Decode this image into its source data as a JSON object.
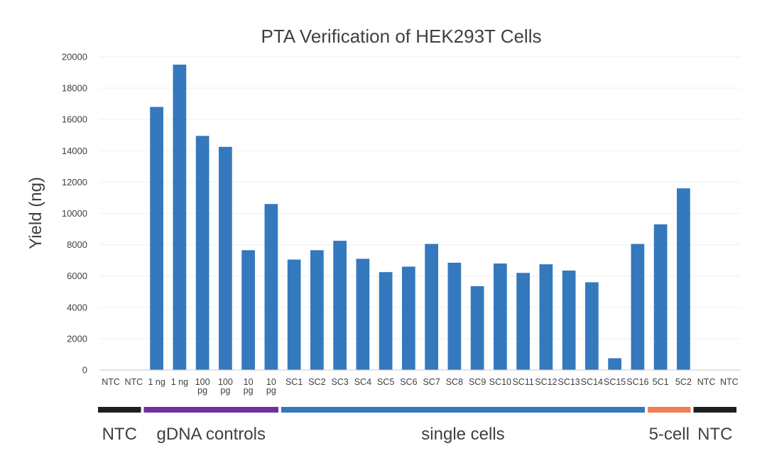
{
  "chart_data": {
    "type": "bar",
    "title": "PTA Verification of HEK293T Cells",
    "xlabel": "",
    "ylabel": "Yield (ng)",
    "ylim": [
      0,
      20000
    ],
    "yticks": [
      0,
      2000,
      4000,
      6000,
      8000,
      10000,
      12000,
      14000,
      16000,
      18000,
      20000
    ],
    "grid": true,
    "bar_color": "#3478be",
    "categories": [
      [
        "NTC"
      ],
      [
        "NTC"
      ],
      [
        "1 ng"
      ],
      [
        "1 ng"
      ],
      [
        "100",
        "pg"
      ],
      [
        "100",
        "pg"
      ],
      [
        "10",
        "pg"
      ],
      [
        "10",
        "pg"
      ],
      [
        "SC1"
      ],
      [
        "SC2"
      ],
      [
        "SC3"
      ],
      [
        "SC4"
      ],
      [
        "SC5"
      ],
      [
        "SC6"
      ],
      [
        "SC7"
      ],
      [
        "SC8"
      ],
      [
        "SC9"
      ],
      [
        "SC10"
      ],
      [
        "SC11"
      ],
      [
        "SC12"
      ],
      [
        "SC13"
      ],
      [
        "SC14"
      ],
      [
        "SC15"
      ],
      [
        "SC16"
      ],
      [
        "5C1"
      ],
      [
        "5C2"
      ],
      [
        "NTC"
      ],
      [
        "NTC"
      ]
    ],
    "values": [
      0,
      0,
      16800,
      19500,
      14950,
      14250,
      7650,
      10600,
      7050,
      7650,
      8250,
      7100,
      6250,
      6600,
      8050,
      6850,
      5350,
      6800,
      6200,
      6750,
      6350,
      5600,
      750,
      8050,
      9300,
      11600,
      0,
      0
    ],
    "groups": [
      {
        "label": "NTC",
        "start": 0,
        "end": 1,
        "color": "#1f1f1f"
      },
      {
        "label": "gDNA controls",
        "start": 2,
        "end": 7,
        "color": "#7030a0"
      },
      {
        "label": "single cells",
        "start": 8,
        "end": 23,
        "color": "#3478be"
      },
      {
        "label": "5-cell",
        "start": 24,
        "end": 25,
        "color": "#f08050"
      },
      {
        "label": "NTC",
        "start": 26,
        "end": 27,
        "color": "#1f1f1f"
      }
    ]
  }
}
